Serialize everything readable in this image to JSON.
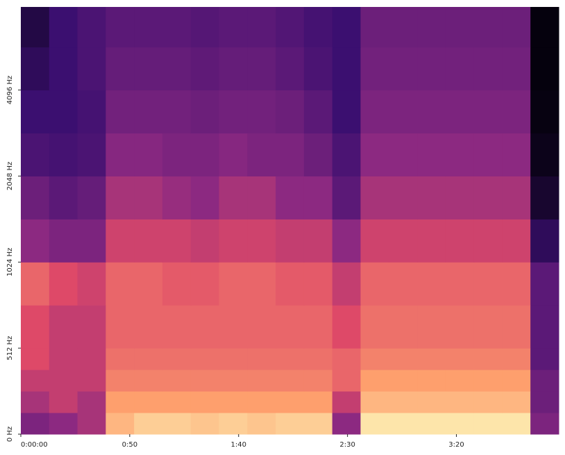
{
  "chart_data": {
    "type": "spectrogram",
    "colormap": "magma",
    "xlim": [
      0,
      247
    ],
    "xticks": [
      {
        "value": 0,
        "label": "0:00:00"
      },
      {
        "value": 50,
        "label": "0:50"
      },
      {
        "value": 100,
        "label": "1:40"
      },
      {
        "value": 150,
        "label": "2:30"
      },
      {
        "value": 200,
        "label": "3:20"
      }
    ],
    "ylim": [
      0,
      8000
    ],
    "yscale": "symlog",
    "linthresh": 512,
    "yticks": [
      {
        "value": 0,
        "label": "0 Hz"
      },
      {
        "value": 512,
        "label": "512 Hz"
      },
      {
        "value": 1024,
        "label": "1024 Hz"
      },
      {
        "value": 2048,
        "label": "2048 Hz"
      },
      {
        "value": 4096,
        "label": "4096 Hz"
      }
    ],
    "time_bins": [
      0,
      13,
      26,
      39,
      52,
      65,
      78,
      91,
      104,
      117,
      130,
      143,
      156,
      169,
      182,
      195,
      208,
      221,
      234,
      247
    ],
    "freq_bins": [
      0,
      128,
      256,
      384,
      512,
      724,
      1024,
      1448,
      2048,
      2896,
      4096,
      5793,
      8000
    ],
    "values": [
      [
        0.45,
        0.5,
        0.55,
        0.85,
        0.9,
        0.9,
        0.88,
        0.9,
        0.88,
        0.9,
        0.9,
        0.5,
        0.95,
        0.95,
        0.95,
        0.95,
        0.95,
        0.95,
        0.45
      ],
      [
        0.55,
        0.6,
        0.55,
        0.8,
        0.8,
        0.8,
        0.8,
        0.8,
        0.8,
        0.8,
        0.8,
        0.6,
        0.85,
        0.85,
        0.85,
        0.85,
        0.85,
        0.85,
        0.4
      ],
      [
        0.6,
        0.6,
        0.6,
        0.75,
        0.75,
        0.75,
        0.75,
        0.75,
        0.75,
        0.75,
        0.75,
        0.7,
        0.8,
        0.8,
        0.8,
        0.8,
        0.8,
        0.8,
        0.4
      ],
      [
        0.65,
        0.6,
        0.6,
        0.72,
        0.72,
        0.72,
        0.72,
        0.72,
        0.72,
        0.72,
        0.72,
        0.7,
        0.75,
        0.75,
        0.75,
        0.75,
        0.75,
        0.75,
        0.35
      ],
      [
        0.65,
        0.6,
        0.6,
        0.7,
        0.7,
        0.7,
        0.7,
        0.7,
        0.7,
        0.7,
        0.7,
        0.65,
        0.72,
        0.72,
        0.72,
        0.72,
        0.72,
        0.72,
        0.35
      ],
      [
        0.7,
        0.65,
        0.62,
        0.7,
        0.7,
        0.68,
        0.68,
        0.7,
        0.7,
        0.68,
        0.68,
        0.6,
        0.7,
        0.7,
        0.7,
        0.7,
        0.7,
        0.7,
        0.35
      ],
      [
        0.5,
        0.45,
        0.45,
        0.62,
        0.62,
        0.62,
        0.6,
        0.62,
        0.62,
        0.6,
        0.6,
        0.5,
        0.62,
        0.62,
        0.62,
        0.62,
        0.62,
        0.62,
        0.2
      ],
      [
        0.4,
        0.35,
        0.38,
        0.55,
        0.55,
        0.52,
        0.5,
        0.55,
        0.55,
        0.5,
        0.5,
        0.35,
        0.55,
        0.55,
        0.55,
        0.55,
        0.55,
        0.55,
        0.1
      ],
      [
        0.3,
        0.28,
        0.3,
        0.48,
        0.48,
        0.45,
        0.45,
        0.48,
        0.45,
        0.45,
        0.4,
        0.3,
        0.5,
        0.5,
        0.5,
        0.5,
        0.5,
        0.5,
        0.05
      ],
      [
        0.25,
        0.25,
        0.28,
        0.42,
        0.42,
        0.42,
        0.4,
        0.42,
        0.42,
        0.4,
        0.35,
        0.25,
        0.45,
        0.45,
        0.45,
        0.45,
        0.45,
        0.45,
        0.03
      ],
      [
        0.2,
        0.25,
        0.3,
        0.38,
        0.38,
        0.38,
        0.36,
        0.38,
        0.38,
        0.35,
        0.3,
        0.25,
        0.42,
        0.42,
        0.42,
        0.42,
        0.42,
        0.42,
        0.02
      ],
      [
        0.15,
        0.25,
        0.3,
        0.35,
        0.35,
        0.35,
        0.33,
        0.35,
        0.35,
        0.32,
        0.28,
        0.25,
        0.4,
        0.4,
        0.4,
        0.4,
        0.4,
        0.4,
        0.02
      ]
    ]
  }
}
